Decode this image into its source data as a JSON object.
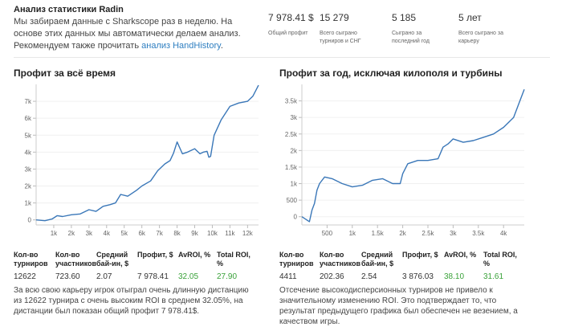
{
  "intro": {
    "title": "Анализ статистики Radin",
    "text": "Мы забираем данные с Sharkscope раз в неделю. На основе этих данных мы автоматически делаем анализ. Рекомендуем также прочитать",
    "link": "анализ HandHistory",
    "end": "."
  },
  "stats": [
    {
      "value": "7 978.41 $",
      "label": "Общий профит"
    },
    {
      "value": "15 279",
      "label": "Всего сыграно турниров и СНГ"
    },
    {
      "value": "5 185",
      "label": "Сыграно за последний год"
    },
    {
      "value": "5 лет",
      "label": "Всего сыграно за карьеру"
    }
  ],
  "colors": {
    "line": "#3a77b8",
    "green": "#3aa23a",
    "link": "#2f7fc1"
  },
  "chart_data": [
    {
      "type": "line",
      "title": "Профит за всё время",
      "xlabel": "",
      "ylabel": "",
      "xlim": [
        0,
        12622
      ],
      "ylim": [
        -300,
        8000
      ],
      "xticks": [
        1000,
        2000,
        3000,
        4000,
        5000,
        6000,
        7000,
        8000,
        9000,
        10000,
        11000,
        12000
      ],
      "xtick_labels": [
        "1k",
        "2k",
        "3k",
        "4k",
        "5k",
        "6k",
        "7k",
        "8k",
        "9k",
        "10k",
        "11k",
        "12k"
      ],
      "yticks": [
        0,
        1000,
        2000,
        3000,
        4000,
        5000,
        6000,
        7000
      ],
      "ytick_labels": [
        "0",
        "1k",
        "2k",
        "3k",
        "4k",
        "5k",
        "6k",
        "7k"
      ],
      "series": [
        {
          "name": "Профит",
          "x": [
            0,
            500,
            900,
            1200,
            1500,
            2000,
            2500,
            3000,
            3400,
            3800,
            4200,
            4500,
            4800,
            5200,
            5700,
            6000,
            6500,
            6900,
            7300,
            7600,
            7800,
            8000,
            8300,
            8600,
            9000,
            9300,
            9500,
            9700,
            9800,
            9900,
            10100,
            10500,
            11000,
            11500,
            12000,
            12300,
            12622
          ],
          "y": [
            0,
            -50,
            50,
            250,
            200,
            300,
            350,
            600,
            500,
            800,
            900,
            1000,
            1500,
            1400,
            1750,
            2000,
            2300,
            2900,
            3300,
            3500,
            3950,
            4600,
            3900,
            4000,
            4200,
            3900,
            4000,
            4050,
            3700,
            3750,
            5000,
            5900,
            6700,
            6900,
            7000,
            7300,
            7950
          ]
        }
      ]
    },
    {
      "type": "line",
      "title": "Профит за год, исключая килополя и турбины",
      "xlabel": "",
      "ylabel": "",
      "xlim": [
        0,
        4411
      ],
      "ylim": [
        -250,
        4000
      ],
      "xticks": [
        500,
        1000,
        1500,
        2000,
        2500,
        3000,
        3500,
        4000
      ],
      "xtick_labels": [
        "500",
        "1k",
        "1.5k",
        "2k",
        "2.5k",
        "3k",
        "3.5k",
        "4k"
      ],
      "yticks": [
        0,
        500,
        1000,
        1500,
        2000,
        2500,
        3000,
        3500
      ],
      "ytick_labels": [
        "0",
        "500",
        "1k",
        "1.5k",
        "2k",
        "2.5k",
        "3k",
        "3.5k"
      ],
      "series": [
        {
          "name": "Профит",
          "x": [
            0,
            150,
            200,
            250,
            300,
            350,
            450,
            600,
            800,
            1000,
            1200,
            1400,
            1600,
            1800,
            1950,
            2000,
            2100,
            2300,
            2500,
            2700,
            2800,
            2900,
            3000,
            3200,
            3400,
            3600,
            3800,
            4000,
            4200,
            4411
          ],
          "y": [
            0,
            -150,
            200,
            400,
            800,
            1000,
            1200,
            1150,
            1000,
            900,
            950,
            1100,
            1150,
            1000,
            1000,
            1300,
            1600,
            1700,
            1700,
            1750,
            2100,
            2200,
            2350,
            2250,
            2300,
            2400,
            2500,
            2700,
            3000,
            3850
          ]
        }
      ]
    }
  ],
  "metrics": [
    {
      "items": [
        {
          "label": "Кол-во турниров",
          "value": "12622",
          "green": false
        },
        {
          "label": "Кол-во участников",
          "value": "723.60",
          "green": false
        },
        {
          "label": "Средний бай-ин, $",
          "value": "2.07",
          "green": false
        },
        {
          "label": "Профит, $",
          "value": "7 978.41",
          "green": false
        },
        {
          "label": "AvROI, %",
          "value": "32.05",
          "green": true
        },
        {
          "label": "Total ROI, %",
          "value": "27.90",
          "green": true
        }
      ],
      "note": "За всю свою карьеру игрок отыграл очень длинную дистанцию из 12622 турнира с очень высоким ROI в среднем 32.05%, на дистанции был показан общий профит 7 978.41$."
    },
    {
      "items": [
        {
          "label": "Кол-во турниров",
          "value": "4411",
          "green": false
        },
        {
          "label": "Кол-во участников",
          "value": "202.36",
          "green": false
        },
        {
          "label": "Средний бай-ин, $",
          "value": "2.54",
          "green": false
        },
        {
          "label": "Профит, $",
          "value": "3 876.03",
          "green": false
        },
        {
          "label": "AvROI, %",
          "value": "38.10",
          "green": true
        },
        {
          "label": "Total ROI, %",
          "value": "31.61",
          "green": true
        }
      ],
      "note": "Отсечение высокодисперсионных турниров не привело к значительному изменению ROI. Это подтверждает то, что результат предыдущего графика был обеспечен не везением, а качеством игры."
    }
  ]
}
